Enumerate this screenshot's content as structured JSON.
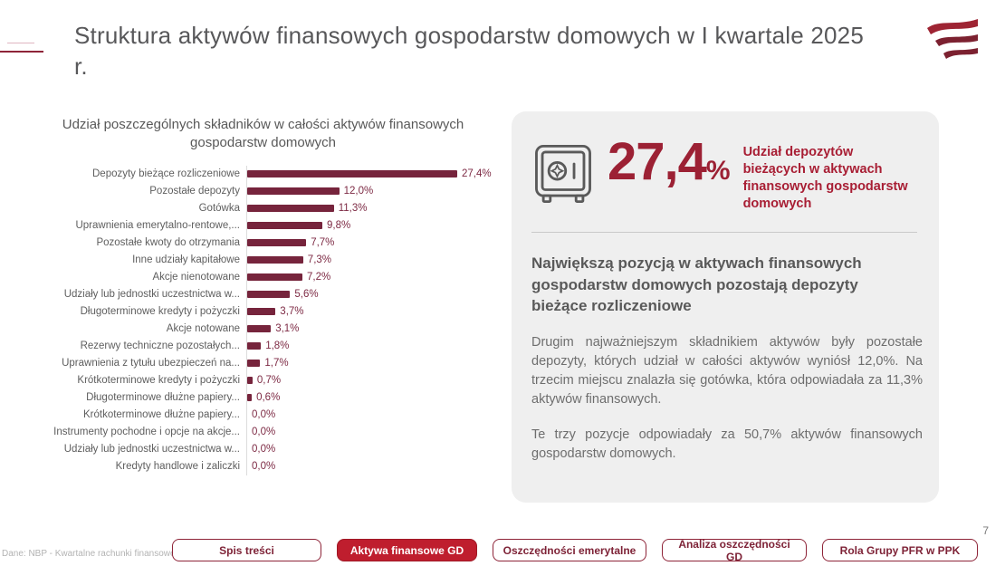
{
  "slide": {
    "title": "Struktura aktywów finansowych gospodarstw domowych w I kwartale 2025 r.",
    "page_number": "7",
    "source_note": "Dane: NBP - Kwartalne rachunki finansowe"
  },
  "brand": {
    "logo": "pfr-logo",
    "accent_red": "#bf1e2e",
    "maroon": "#76243c"
  },
  "chart_data": {
    "type": "bar",
    "orientation": "horizontal",
    "title": "Udział poszczególnych składników w całości aktywów finansowych gospodarstw domowych",
    "categories": [
      "Depozyty bieżące rozliczeniowe",
      "Pozostałe depozyty",
      "Gotówka",
      "Uprawnienia emerytalno-rentowe,...",
      "Pozostałe kwoty do otrzymania",
      "Inne udziały kapitałowe",
      "Akcje nienotowane",
      "Udziały lub jednostki uczestnictwa w...",
      "Długoterminowe kredyty i pożyczki",
      "Akcje notowane",
      "Rezerwy techniczne pozostałych...",
      "Uprawnienia z tytułu ubezpieczeń na...",
      "Krótkoterminowe kredyty i pożyczki",
      "Długoterminowe dłużne papiery...",
      "Krótkoterminowe dłużne papiery...",
      "Instrumenty pochodne i opcje na akcje...",
      "Udziały lub jednostki uczestnictwa w...",
      "Kredyty handlowe i zaliczki"
    ],
    "values": [
      27.4,
      12.0,
      11.3,
      9.8,
      7.7,
      7.3,
      7.2,
      5.6,
      3.7,
      3.1,
      1.8,
      1.7,
      0.7,
      0.6,
      0.0,
      0.0,
      0.0,
      0.0
    ],
    "value_labels": [
      "27,4%",
      "12,0%",
      "11,3%",
      "9,8%",
      "7,7%",
      "7,3%",
      "7,2%",
      "5,6%",
      "3,7%",
      "3,1%",
      "1,8%",
      "1,7%",
      "0,7%",
      "0,6%",
      "0,0%",
      "0,0%",
      "0,0%",
      "0,0%"
    ],
    "xlabel": "",
    "ylabel": "",
    "xlim": [
      0,
      30
    ],
    "bar_color": "#76243c",
    "legend": false,
    "grid": false
  },
  "panel": {
    "stat_value": "27,4",
    "stat_unit": "%",
    "stat_caption": "Udział depozytów bieżących w aktywach finansowych gospodarstw domowych",
    "heading": "Największą pozycją w aktywach finansowych gospodarstw domowych pozostają depozyty bieżące rozliczeniowe",
    "paragraph1": "Drugim najważniejszym składnikiem aktywów były pozostałe depozyty, których udział w całości aktywów wyniósł 12,0%. Na trzecim miejscu znalazła się gotówka, która odpowiadała za 11,3% aktywów finansowych.",
    "paragraph2": "Te trzy pozycje odpowiadały za 50,7% aktywów finansowych gospodarstw domowych."
  },
  "nav": {
    "buttons": [
      {
        "label": "Spis treści",
        "active": false
      },
      {
        "label": "Aktywa finansowe GD",
        "active": true
      },
      {
        "label": "Oszczędności emerytalne",
        "active": false
      },
      {
        "label": "Analiza oszczędności GD",
        "active": false
      },
      {
        "label": "Rola Grupy PFR w PPK",
        "active": false
      }
    ]
  }
}
